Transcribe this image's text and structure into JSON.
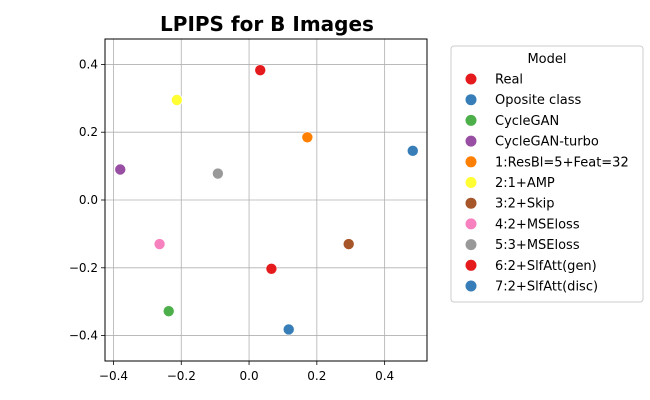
{
  "chart_data": {
    "type": "scatter",
    "title": "LPIPS for B Images",
    "xlabel": "",
    "ylabel": "",
    "xlim": [
      -0.425,
      0.525
    ],
    "ylim": [
      -0.475,
      0.475
    ],
    "xticks": [
      -0.4,
      -0.2,
      0.0,
      0.2,
      0.4
    ],
    "xtick_labels": [
      "−0.4",
      "−0.2",
      "0.0",
      "0.2",
      "0.4"
    ],
    "yticks": [
      -0.4,
      -0.2,
      0.0,
      0.2,
      0.4
    ],
    "ytick_labels": [
      "−0.4",
      "−0.2",
      "0.0",
      "0.2",
      "0.4"
    ],
    "grid": true,
    "legend": {
      "title": "Model",
      "placement": "outside-right"
    },
    "series": [
      {
        "name": "Real",
        "color": "#e41a1c",
        "x": [
          0.033
        ],
        "y": [
          0.383
        ]
      },
      {
        "name": "Oposite class",
        "color": "#377eb8",
        "x": [
          0.483
        ],
        "y": [
          0.145
        ]
      },
      {
        "name": "CycleGAN",
        "color": "#4daf4a",
        "x": [
          -0.237
        ],
        "y": [
          -0.328
        ]
      },
      {
        "name": "CycleGAN-turbo",
        "color": "#984ea3",
        "x": [
          -0.38
        ],
        "y": [
          0.09
        ]
      },
      {
        "name": "1:ResBl=5+Feat=32",
        "color": "#ff7f00",
        "x": [
          0.172
        ],
        "y": [
          0.185
        ]
      },
      {
        "name": "2:1+AMP",
        "color": "#ffff33",
        "x": [
          -0.213
        ],
        "y": [
          0.295
        ]
      },
      {
        "name": "3:2+Skip",
        "color": "#a65628",
        "x": [
          0.294
        ],
        "y": [
          -0.13
        ]
      },
      {
        "name": "4:2+MSEloss",
        "color": "#f781bf",
        "x": [
          -0.264
        ],
        "y": [
          -0.13
        ]
      },
      {
        "name": "5:3+MSEloss",
        "color": "#999999",
        "x": [
          -0.092
        ],
        "y": [
          0.078
        ]
      },
      {
        "name": "6:2+SlfAtt(gen)",
        "color": "#e41a1c",
        "x": [
          0.066
        ],
        "y": [
          -0.203
        ]
      },
      {
        "name": "7:2+SlfAtt(disc)",
        "color": "#377eb8",
        "x": [
          0.117
        ],
        "y": [
          -0.382
        ]
      }
    ]
  }
}
